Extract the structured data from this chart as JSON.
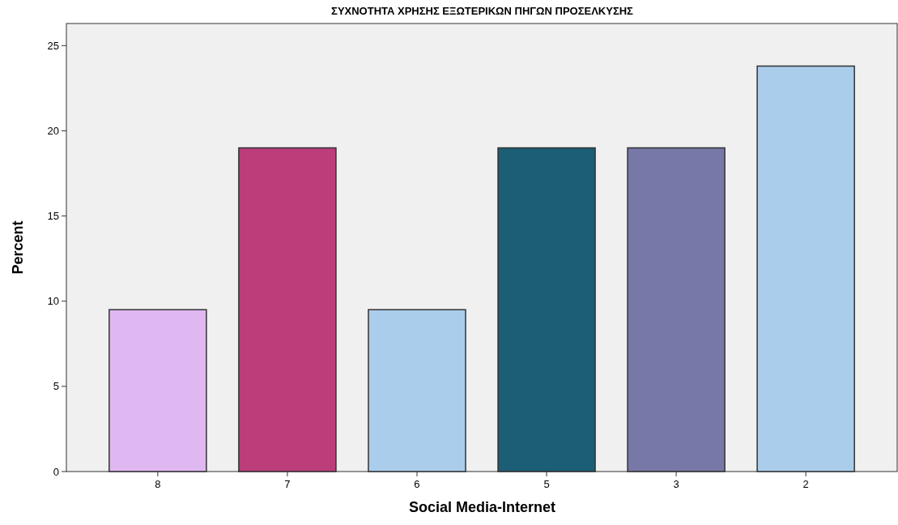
{
  "chart_data": {
    "type": "bar",
    "title": "ΣΥΧΝΟΤΗΤΑ ΧΡΗΣΗΣ ΕΞΩΤΕΡΙΚΩΝ ΠΗΓΩΝ ΠΡΟΣΕΛΚΥΣΗΣ",
    "xlabel": "Social Media-Internet",
    "ylabel": "Percent",
    "categories": [
      "8",
      "7",
      "6",
      "5",
      "3",
      "2"
    ],
    "values": [
      9.5,
      19.0,
      9.5,
      19.0,
      19.0,
      23.8
    ],
    "colors": [
      "#dfb8f2",
      "#bb3e7b",
      "#abcdec",
      "#1c5e75",
      "#7878a8",
      "#abcdec"
    ],
    "ylim": [
      0,
      26.3
    ],
    "yticks": [
      0,
      5,
      10,
      15,
      20,
      25
    ],
    "grid": false
  }
}
